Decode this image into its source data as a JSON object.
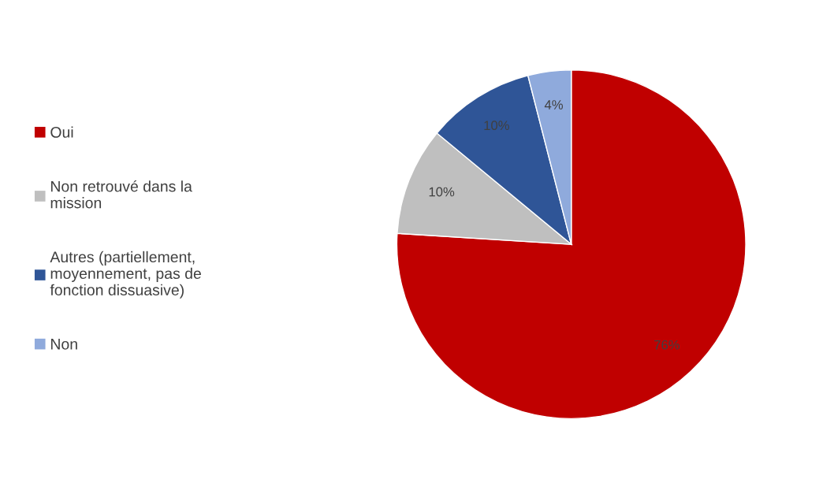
{
  "chart_data": {
    "type": "pie",
    "categories": [
      "Oui",
      "Non retrouvé dans la mission",
      "Autres (partiellement, moyennement, pas de fonction dissuasive)",
      "Non"
    ],
    "values": [
      76,
      10,
      10,
      4
    ],
    "colors": [
      "#c00000",
      "#bfbfbf",
      "#2f5597",
      "#8faadc"
    ],
    "value_labels": [
      "76%",
      "10%",
      "10%",
      "4%"
    ],
    "legend": "left"
  }
}
